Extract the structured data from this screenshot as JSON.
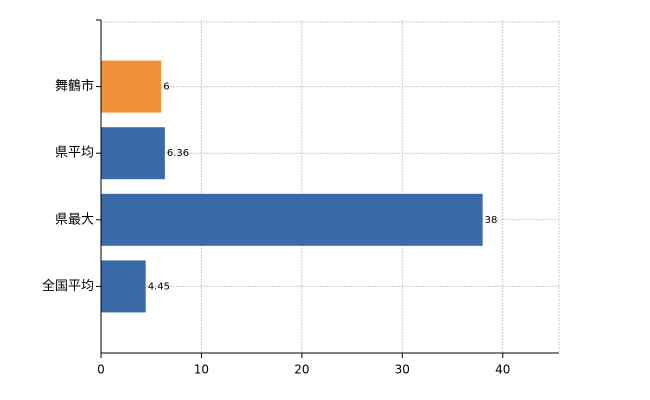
{
  "chart_data": {
    "type": "bar",
    "orientation": "horizontal",
    "categories": [
      "舞鶴市",
      "県平均",
      "県最大",
      "全国平均"
    ],
    "values": [
      6,
      6.36,
      38,
      4.45
    ],
    "colors": [
      "#f0913a",
      "#3a6aa8",
      "#3a6aa8",
      "#3a6aa8"
    ],
    "xlim": [
      0,
      45.6
    ],
    "xticks": [
      0,
      10,
      20,
      30,
      40
    ],
    "grid": true
  }
}
